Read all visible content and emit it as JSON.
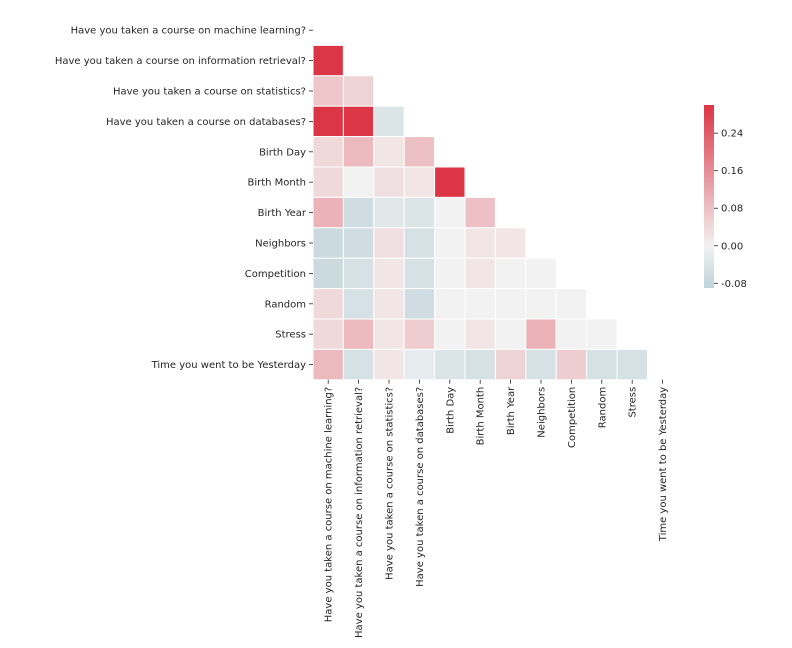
{
  "chart_data": {
    "type": "heatmap",
    "title": "",
    "xlabel": "",
    "ylabel": "",
    "variables": [
      "Have you taken a course on machine learning?",
      "Have you taken a course on information retrieval?",
      "Have you taken a course on statistics?",
      "Have you taken a course on databases?",
      "Birth Day",
      "Birth Month",
      "Birth Year",
      "Neighbors",
      "Competition",
      "Random",
      "Stress",
      "Time you went to be Yesterday"
    ],
    "mask": "upper-triangle-including-diagonal",
    "values": [
      [],
      [
        0.3
      ],
      [
        0.07,
        0.05
      ],
      [
        0.3,
        0.3,
        -0.04
      ],
      [
        0.04,
        0.09,
        0.02,
        0.08
      ],
      [
        0.04,
        0.0,
        0.03,
        0.02,
        0.3
      ],
      [
        0.1,
        -0.06,
        -0.03,
        -0.04,
        0.0,
        0.08
      ],
      [
        -0.07,
        -0.06,
        0.03,
        -0.05,
        0.0,
        0.02,
        0.02
      ],
      [
        -0.07,
        -0.05,
        0.02,
        -0.05,
        0.0,
        0.02,
        0.0,
        0.0
      ],
      [
        0.04,
        -0.05,
        0.02,
        -0.06,
        0.0,
        0.0,
        0.0,
        0.0,
        0.0
      ],
      [
        0.04,
        0.09,
        0.02,
        0.06,
        0.0,
        0.02,
        0.0,
        0.1,
        0.0,
        0.0
      ],
      [
        0.09,
        -0.05,
        0.02,
        -0.02,
        -0.04,
        -0.05,
        0.05,
        -0.05,
        0.06,
        -0.05,
        -0.05
      ]
    ],
    "colorbar": {
      "ticks": [
        "0.24",
        "0.16",
        "0.08",
        "0.00",
        "-0.08"
      ],
      "tick_values": [
        0.24,
        0.16,
        0.08,
        0.0,
        -0.08
      ],
      "range": [
        -0.09,
        0.3
      ],
      "colormap": {
        "negative": "#bed3da",
        "zero": "#f2f2f2",
        "positive": "#dc3545"
      }
    },
    "grid_line_color": "#ffffff"
  }
}
